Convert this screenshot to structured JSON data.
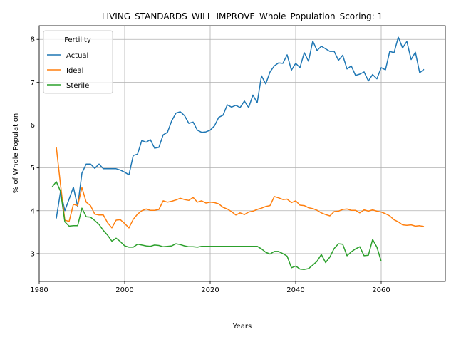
{
  "chart_data": {
    "type": "line",
    "title": "LIVING_STANDARDS_WILL_IMPROVE_Whole_Population_Scoring: 1",
    "xlabel": "Years",
    "ylabel": "% of Whole Population",
    "xlim": [
      1980,
      2075
    ],
    "ylim": [
      2.35,
      8.32
    ],
    "xticks": [
      1980,
      2000,
      2020,
      2040,
      2060
    ],
    "yticks": [
      3,
      4,
      5,
      6,
      7,
      8
    ],
    "grid": true,
    "legend": {
      "title": "Fertility",
      "position": "top-left"
    },
    "series": [
      {
        "name": "Actual",
        "color": "#1f77b4",
        "x": [
          1984,
          1985,
          1986,
          1987,
          1988,
          1989,
          1990,
          1991,
          1992,
          1993,
          1994,
          1995,
          1996,
          1997,
          1998,
          1999,
          2000,
          2001,
          2002,
          2003,
          2004,
          2005,
          2006,
          2007,
          2008,
          2009,
          2010,
          2011,
          2012,
          2013,
          2014,
          2015,
          2016,
          2017,
          2018,
          2019,
          2020,
          2021,
          2022,
          2023,
          2024,
          2025,
          2026,
          2027,
          2028,
          2029,
          2030,
          2031,
          2032,
          2033,
          2034,
          2035,
          2036,
          2037,
          2038,
          2039,
          2040,
          2041,
          2042,
          2043,
          2044,
          2045,
          2046,
          2047,
          2048,
          2049,
          2050,
          2051,
          2052,
          2053,
          2054,
          2055,
          2056,
          2057,
          2058,
          2059,
          2060,
          2061,
          2062,
          2063,
          2064,
          2065,
          2066,
          2067,
          2068,
          2069,
          2070
        ],
        "values": [
          3.82,
          4.45,
          4.0,
          4.27,
          4.55,
          4.1,
          4.88,
          5.09,
          5.09,
          4.99,
          5.09,
          4.98,
          4.98,
          4.98,
          4.98,
          4.95,
          4.9,
          4.84,
          5.29,
          5.32,
          5.64,
          5.6,
          5.66,
          5.46,
          5.48,
          5.77,
          5.83,
          6.1,
          6.28,
          6.31,
          6.22,
          6.04,
          6.07,
          5.88,
          5.83,
          5.84,
          5.88,
          5.98,
          6.18,
          6.23,
          6.47,
          6.42,
          6.46,
          6.41,
          6.56,
          6.41,
          6.7,
          6.52,
          7.15,
          6.96,
          7.24,
          7.38,
          7.45,
          7.44,
          7.64,
          7.28,
          7.44,
          7.34,
          7.69,
          7.49,
          7.96,
          7.74,
          7.84,
          7.78,
          7.72,
          7.72,
          7.51,
          7.63,
          7.31,
          7.38,
          7.16,
          7.19,
          7.24,
          7.03,
          7.18,
          7.08,
          7.34,
          7.29,
          7.72,
          7.69,
          8.05,
          7.8,
          7.95,
          7.53,
          7.7,
          7.22,
          7.3
        ]
      },
      {
        "name": "Ideal",
        "color": "#ff7f0e",
        "x": [
          1984,
          1985,
          1986,
          1987,
          1988,
          1989,
          1990,
          1991,
          1992,
          1993,
          1994,
          1995,
          1996,
          1997,
          1998,
          1999,
          2000,
          2001,
          2002,
          2003,
          2004,
          2005,
          2006,
          2007,
          2008,
          2009,
          2010,
          2011,
          2012,
          2013,
          2014,
          2015,
          2016,
          2017,
          2018,
          2019,
          2020,
          2021,
          2022,
          2023,
          2024,
          2025,
          2026,
          2027,
          2028,
          2029,
          2030,
          2031,
          2032,
          2033,
          2034,
          2035,
          2036,
          2037,
          2038,
          2039,
          2040,
          2041,
          2042,
          2043,
          2044,
          2045,
          2046,
          2047,
          2048,
          2049,
          2050,
          2051,
          2052,
          2053,
          2054,
          2055,
          2056,
          2057,
          2058,
          2059,
          2060,
          2061,
          2062,
          2063,
          2064,
          2065,
          2066,
          2067,
          2068,
          2069,
          2070
        ],
        "values": [
          5.49,
          4.6,
          3.78,
          3.75,
          4.15,
          4.12,
          4.54,
          4.2,
          4.12,
          3.92,
          3.9,
          3.9,
          3.72,
          3.6,
          3.78,
          3.79,
          3.7,
          3.6,
          3.8,
          3.92,
          4.0,
          4.04,
          4.01,
          4.01,
          4.03,
          4.23,
          4.2,
          4.22,
          4.25,
          4.29,
          4.26,
          4.24,
          4.31,
          4.2,
          4.23,
          4.18,
          4.2,
          4.19,
          4.16,
          4.08,
          4.04,
          3.98,
          3.9,
          3.95,
          3.91,
          3.97,
          3.99,
          4.03,
          4.06,
          4.1,
          4.12,
          4.33,
          4.3,
          4.26,
          4.27,
          4.19,
          4.23,
          4.13,
          4.12,
          4.07,
          4.05,
          4.01,
          3.95,
          3.91,
          3.88,
          3.98,
          3.99,
          4.03,
          4.04,
          4.01,
          4.01,
          3.95,
          4.02,
          3.99,
          4.02,
          3.99,
          3.97,
          3.93,
          3.88,
          3.79,
          3.74,
          3.67,
          3.66,
          3.67,
          3.64,
          3.65,
          3.63
        ]
      },
      {
        "name": "Sterile",
        "color": "#2ca02c",
        "x": [
          1983,
          1984,
          1985,
          1986,
          1987,
          1988,
          1989,
          1990,
          1991,
          1992,
          1993,
          1994,
          1995,
          1996,
          1997,
          1998,
          1999,
          2000,
          2001,
          2002,
          2003,
          2004,
          2005,
          2006,
          2007,
          2008,
          2009,
          2010,
          2011,
          2012,
          2013,
          2014,
          2015,
          2016,
          2017,
          2018,
          2019,
          2020,
          2021,
          2022,
          2023,
          2024,
          2025,
          2026,
          2027,
          2028,
          2029,
          2030,
          2031,
          2032,
          2033,
          2034,
          2035,
          2036,
          2037,
          2038,
          2039,
          2040,
          2041,
          2042,
          2043,
          2044,
          2045,
          2046,
          2047,
          2048,
          2049,
          2050,
          2051,
          2052,
          2053,
          2054,
          2055,
          2056,
          2057,
          2058,
          2059,
          2060
        ],
        "values": [
          4.55,
          4.68,
          4.45,
          3.74,
          3.64,
          3.65,
          3.65,
          4.06,
          3.86,
          3.85,
          3.77,
          3.68,
          3.54,
          3.43,
          3.29,
          3.36,
          3.28,
          3.18,
          3.15,
          3.15,
          3.22,
          3.2,
          3.18,
          3.17,
          3.2,
          3.19,
          3.16,
          3.17,
          3.18,
          3.23,
          3.21,
          3.18,
          3.16,
          3.16,
          3.15,
          3.17,
          3.17,
          3.17,
          3.17,
          3.17,
          3.17,
          3.17,
          3.17,
          3.17,
          3.17,
          3.17,
          3.17,
          3.17,
          3.17,
          3.11,
          3.03,
          2.99,
          3.05,
          3.05,
          3.0,
          2.94,
          2.67,
          2.71,
          2.64,
          2.63,
          2.65,
          2.73,
          2.82,
          2.98,
          2.79,
          2.92,
          3.12,
          3.23,
          3.22,
          2.95,
          3.04,
          3.11,
          3.16,
          2.95,
          2.96,
          3.33,
          3.15,
          2.82
        ]
      }
    ]
  }
}
